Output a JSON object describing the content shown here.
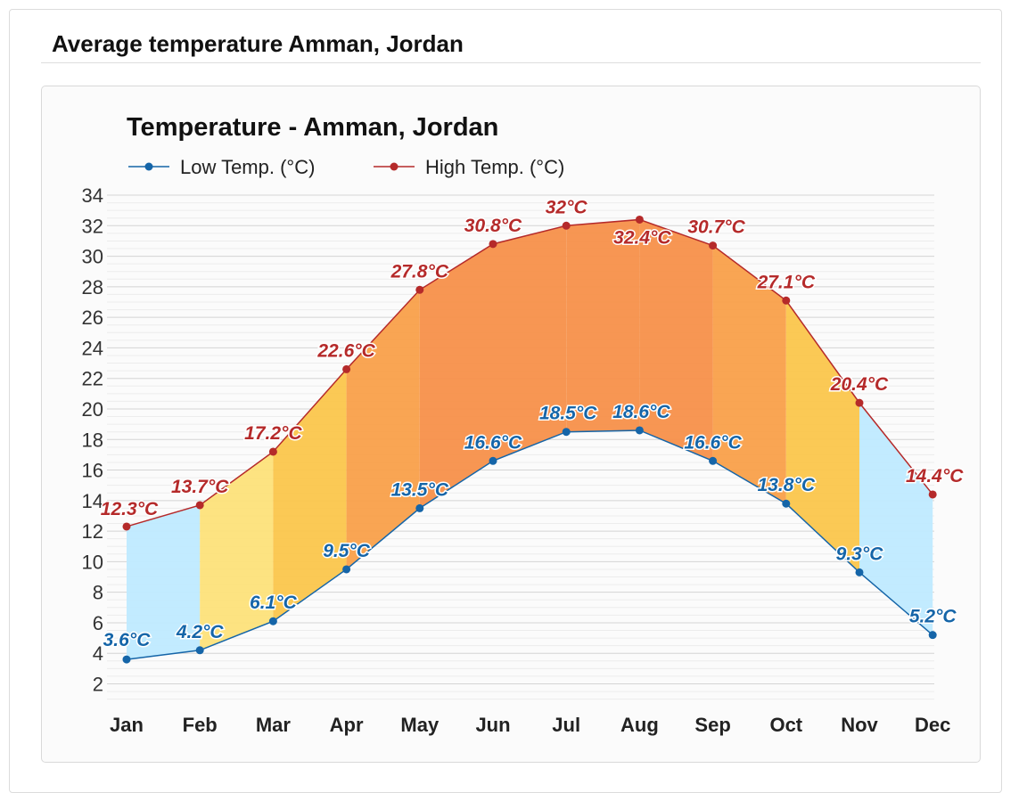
{
  "page": {
    "title": "Average temperature Amman, Jordan"
  },
  "colors": {
    "low": "#1565a8",
    "high": "#b52a2a",
    "band_cool": "#bfeaff",
    "band_mild": "#fde27a",
    "band_warm": "#fbc64c",
    "band_hot": "#f9a04a",
    "band_hottest": "#f7904a"
  },
  "chart_data": {
    "type": "line",
    "title": "Temperature - Amman, Jordan",
    "categories": [
      "Jan",
      "Feb",
      "Mar",
      "Apr",
      "May",
      "Jun",
      "Jul",
      "Aug",
      "Sep",
      "Oct",
      "Nov",
      "Dec"
    ],
    "series": [
      {
        "name": "Low Temp. (°C)",
        "values": [
          3.6,
          4.2,
          6.1,
          9.5,
          13.5,
          16.6,
          18.5,
          18.6,
          16.6,
          13.8,
          9.3,
          5.2
        ],
        "labels": [
          "3.6°C",
          "4.2°C",
          "6.1°C",
          "9.5°C",
          "13.5°C",
          "16.6°C",
          "18.5°C",
          "18.6°C",
          "16.6°C",
          "13.8°C",
          "9.3°C",
          "5.2°C"
        ]
      },
      {
        "name": "High Temp. (°C)",
        "values": [
          12.3,
          13.7,
          17.2,
          22.6,
          27.8,
          30.8,
          32,
          32.4,
          30.7,
          27.1,
          20.4,
          14.4
        ],
        "labels": [
          "12.3°C",
          "13.7°C",
          "17.2°C",
          "22.6°C",
          "27.8°C",
          "30.8°C",
          "32°C",
          "32.4°C",
          "30.7°C",
          "27.1°C",
          "20.4°C",
          "14.4°C"
        ]
      }
    ],
    "yticks": [
      "2",
      "4",
      "6",
      "8",
      "10",
      "12",
      "14",
      "16",
      "18",
      "20",
      "22",
      "24",
      "26",
      "28",
      "30",
      "32",
      "34"
    ],
    "ylim": [
      1,
      34
    ],
    "grid": true,
    "legend": "top-left",
    "band_levels": [
      "cool",
      "mild",
      "warm",
      "hot",
      "hottest",
      "hottest",
      "hottest",
      "hottest",
      "hot",
      "warm",
      "cool"
    ]
  }
}
